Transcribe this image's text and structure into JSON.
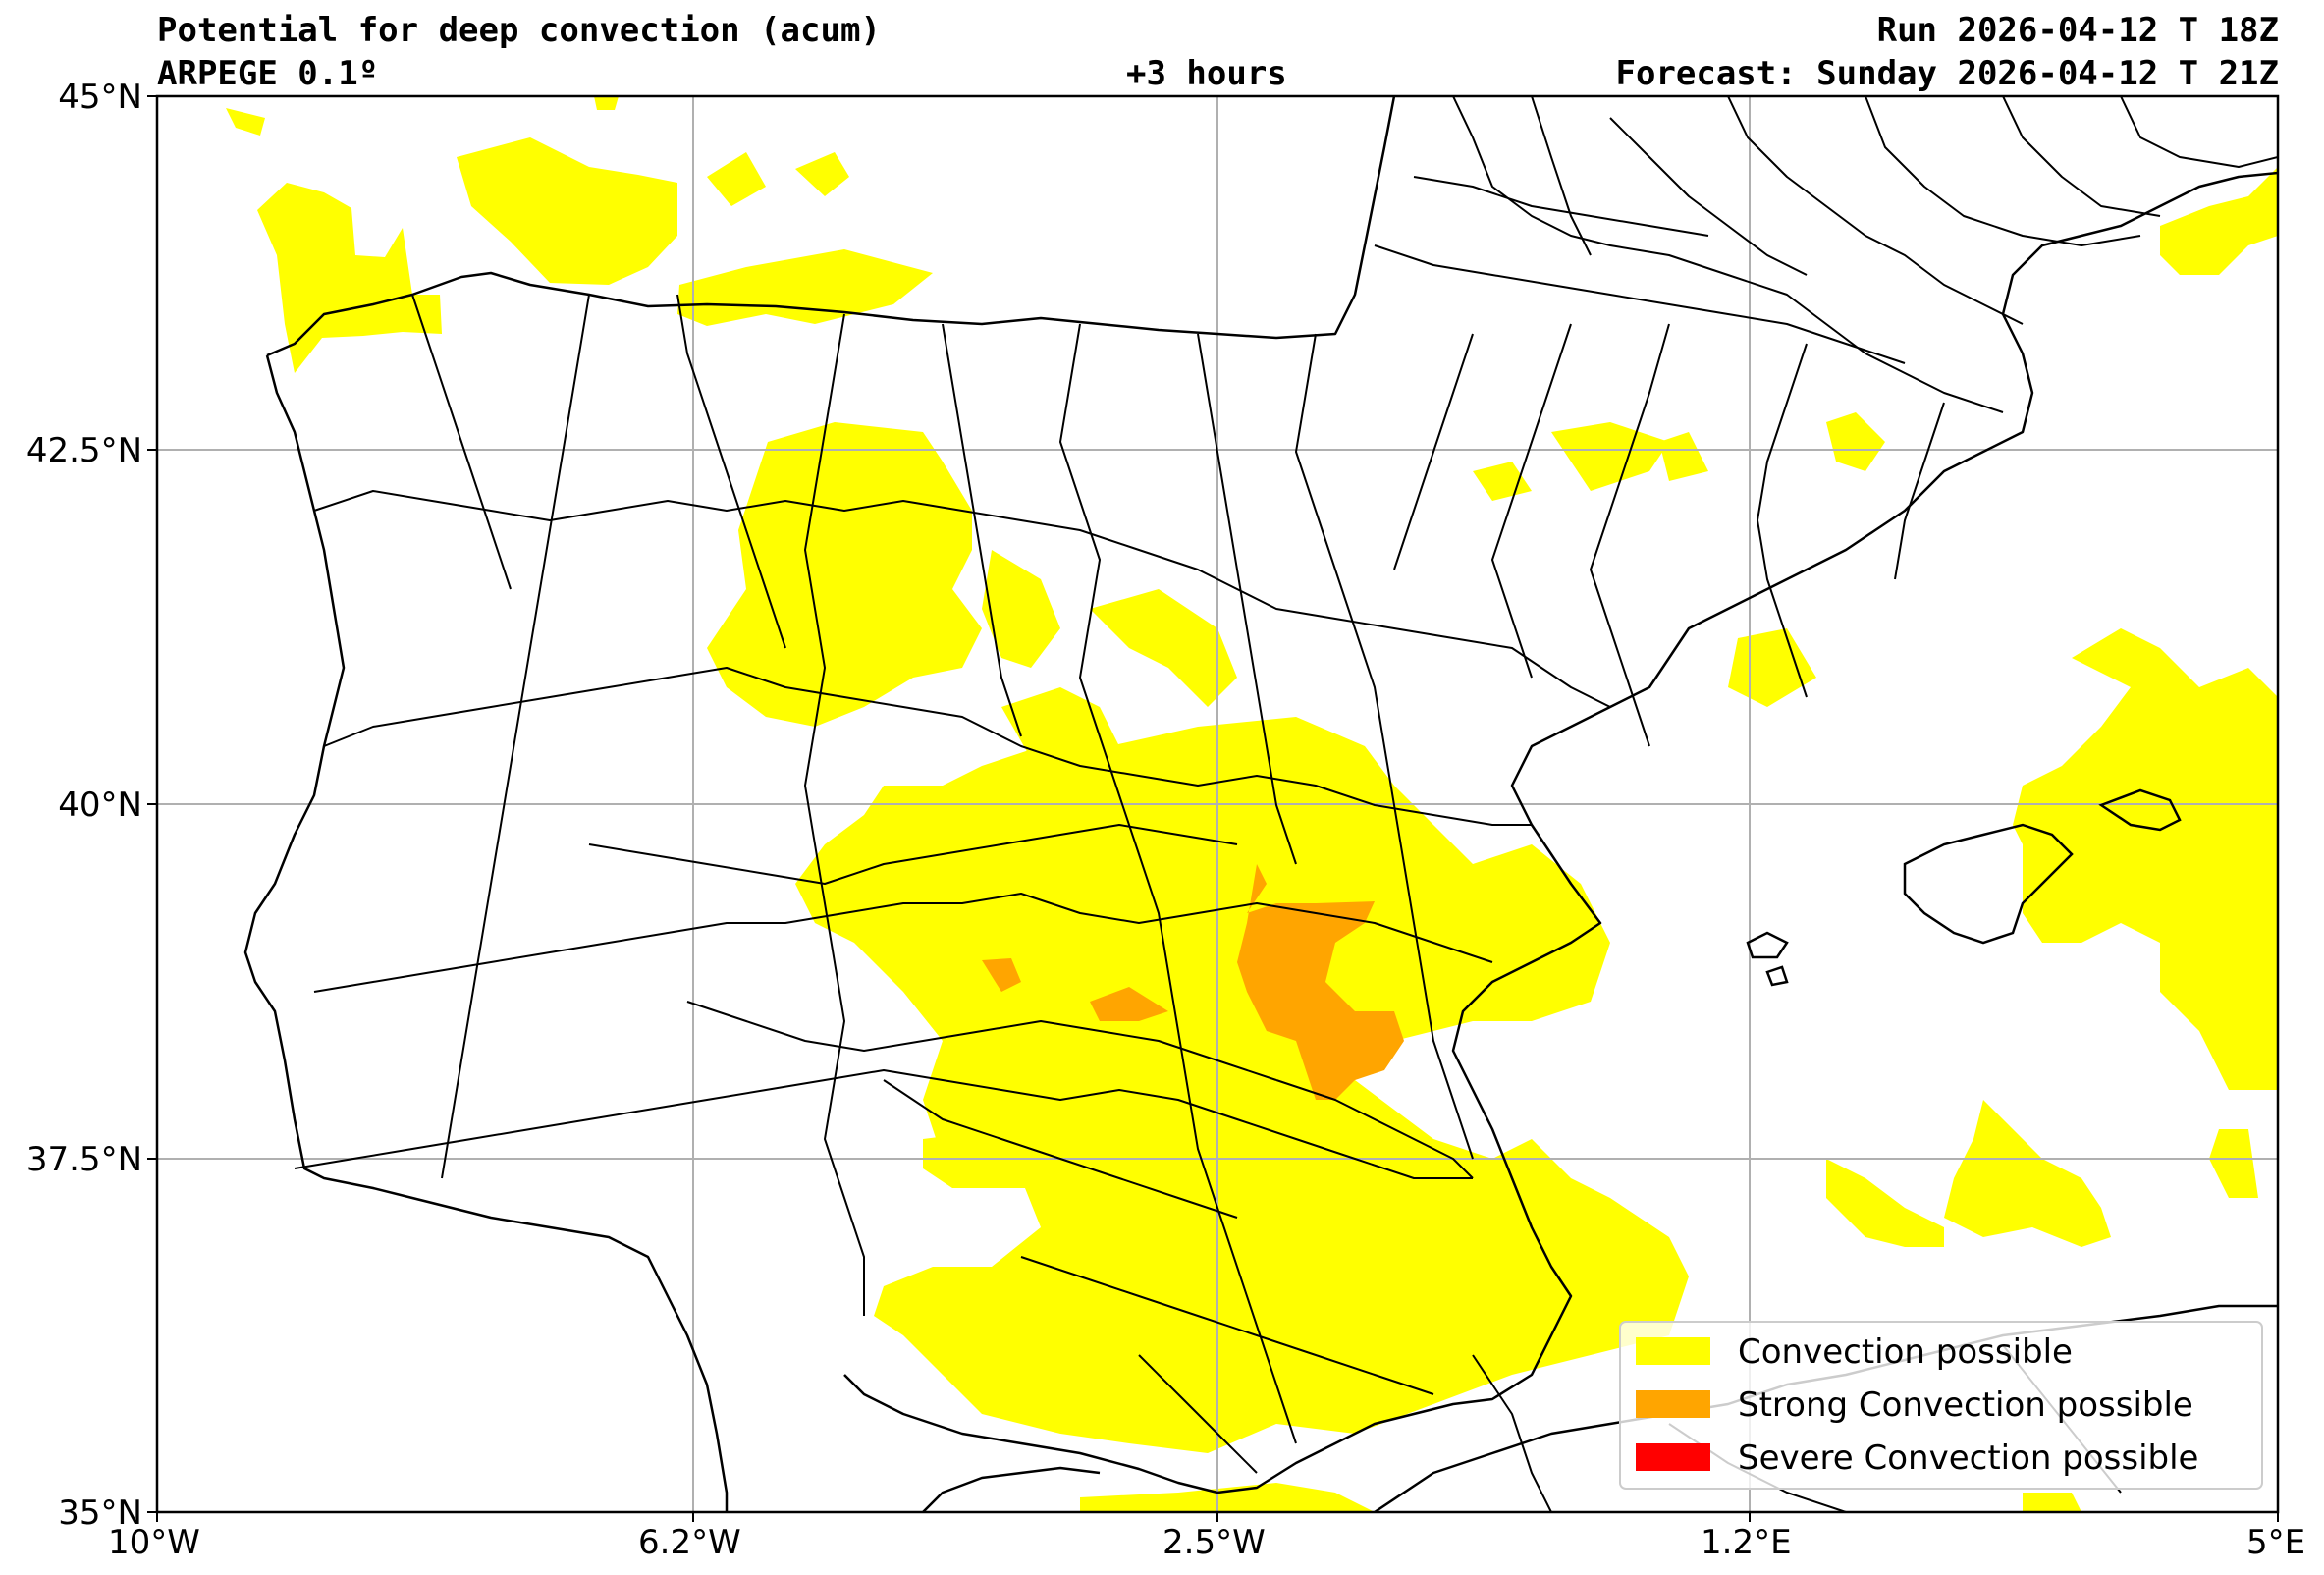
{
  "header": {
    "title": "Potential for deep convection (acum)",
    "model": "ARPEGE 0.1º",
    "lead_time": "+3 hours",
    "run": "Run 2026-04-12 T 18Z",
    "forecast": "Forecast: Sunday 2026-04-12 T 21Z"
  },
  "axes": {
    "x_ticks": [
      "10°W",
      "6.2°W",
      "2.5°W",
      "1.2°E",
      "5°E"
    ],
    "y_ticks": [
      "45°N",
      "42.5°N",
      "40°N",
      "37.5°N",
      "35°N"
    ],
    "lon_range": [
      -10,
      5
    ],
    "lat_range": [
      35,
      45
    ],
    "grid": true
  },
  "legend": {
    "placement": "bottom-right",
    "items": [
      {
        "label": "Convection possible",
        "color": "#ffff00"
      },
      {
        "label": "Strong Convection possible",
        "color": "#ffa500"
      },
      {
        "label": "Severe Convection possible",
        "color": "#ff0000"
      }
    ]
  },
  "colors": {
    "convection": "#ffff00",
    "strong": "#ffa500",
    "severe": "#ff0000",
    "border": "#000000",
    "grid": "#b0b0b0"
  }
}
